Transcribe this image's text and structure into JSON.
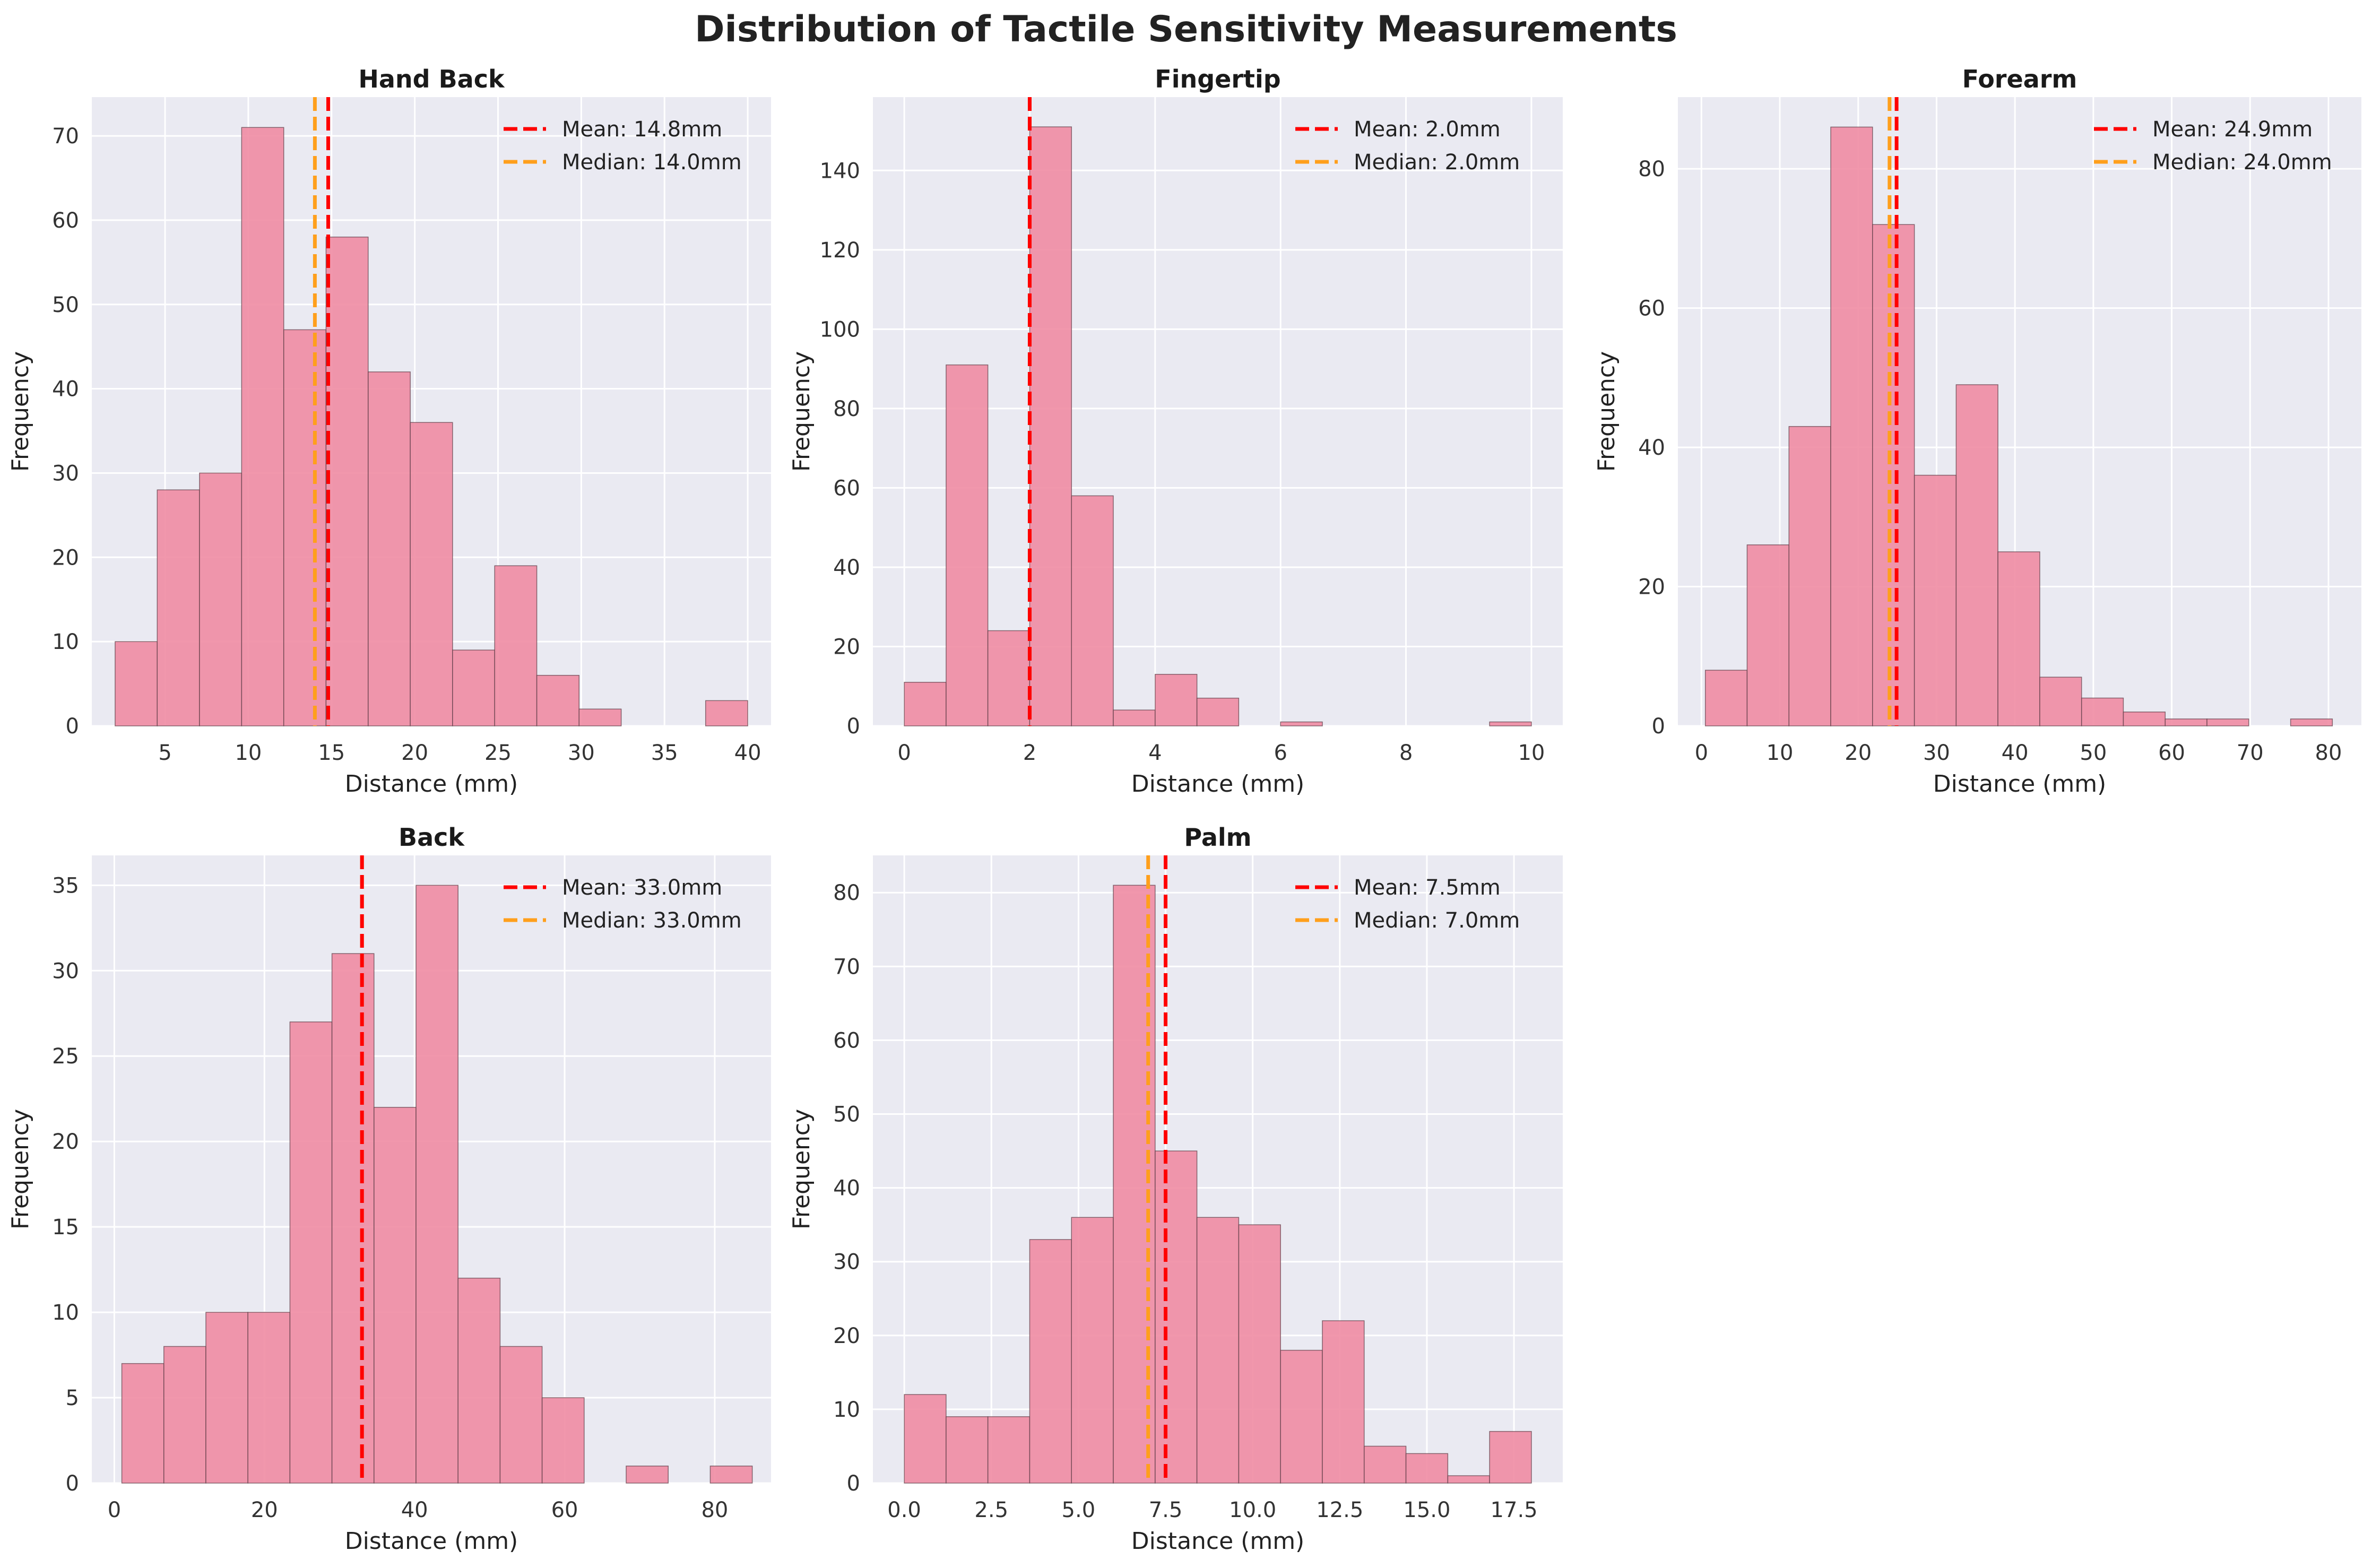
{
  "suptitle": "Distribution of Tactile Sensitivity Measurements",
  "colors": {
    "bar": "#f08ca3",
    "bar_edge": "#5a3a44",
    "panel_bg": "#eaeaf2",
    "grid": "#ffffff",
    "mean_line": "#ff0000",
    "median_line": "#ff9f1c"
  },
  "chart_data": [
    {
      "type": "bar",
      "title": "Hand Back",
      "xlabel": "Distance (mm)",
      "ylabel": "Frequency",
      "xlim": [
        0.6,
        41.4
      ],
      "ylim": [
        0,
        74.6
      ],
      "xticks": [
        5,
        10,
        15,
        20,
        25,
        30,
        35,
        40
      ],
      "yticks": [
        0,
        10,
        20,
        30,
        40,
        50,
        60,
        70
      ],
      "bin_edges": [
        2.0,
        4.53,
        7.07,
        9.6,
        12.13,
        14.67,
        17.2,
        19.73,
        22.27,
        24.8,
        27.33,
        29.87,
        32.4,
        34.93,
        37.47,
        40.0
      ],
      "counts": [
        10,
        28,
        30,
        71,
        47,
        58,
        42,
        36,
        9,
        19,
        6,
        2,
        0,
        0,
        3
      ],
      "mean": 14.8,
      "median": 14.0,
      "legend": [
        "Mean: 14.8mm",
        "Median: 14.0mm"
      ],
      "legend_position": "top-right",
      "grid": true
    },
    {
      "type": "bar",
      "title": "Fingertip",
      "xlabel": "Distance (mm)",
      "ylabel": "Frequency",
      "xlim": [
        -0.5,
        10.5
      ],
      "ylim": [
        0,
        158.5
      ],
      "xticks": [
        0,
        2,
        4,
        6,
        8,
        10
      ],
      "yticks": [
        0,
        20,
        40,
        60,
        80,
        100,
        120,
        140
      ],
      "bin_edges": [
        0.0,
        0.667,
        1.333,
        2.0,
        2.667,
        3.333,
        4.0,
        4.667,
        5.333,
        6.0,
        6.667,
        7.333,
        8.0,
        8.667,
        9.333,
        10.0
      ],
      "counts": [
        11,
        91,
        24,
        151,
        58,
        4,
        13,
        7,
        0,
        1,
        0,
        0,
        0,
        0,
        1
      ],
      "mean": 2.0,
      "median": 2.0,
      "legend": [
        "Mean: 2.0mm",
        "Median: 2.0mm"
      ],
      "legend_position": "top-right",
      "grid": true
    },
    {
      "type": "bar",
      "title": "Forearm",
      "xlabel": "Distance (mm)",
      "ylabel": "Frequency",
      "xlim": [
        -3.0,
        84.2
      ],
      "ylim": [
        0,
        90.3
      ],
      "xticks": [
        0,
        10,
        20,
        30,
        40,
        50,
        60,
        70,
        80
      ],
      "yticks": [
        0,
        20,
        40,
        60,
        80
      ],
      "bin_edges": [
        0.5,
        5.83,
        11.17,
        16.5,
        21.83,
        27.17,
        32.5,
        37.83,
        43.17,
        48.5,
        53.83,
        59.17,
        64.5,
        69.83,
        75.17,
        80.5
      ],
      "counts": [
        8,
        26,
        43,
        86,
        72,
        36,
        49,
        25,
        7,
        4,
        2,
        1,
        1,
        0,
        1
      ],
      "mean": 24.9,
      "median": 24.0,
      "legend": [
        "Mean: 24.9mm",
        "Median: 24.0mm"
      ],
      "legend_position": "top-right",
      "grid": true
    },
    {
      "type": "bar",
      "title": "Back",
      "xlabel": "Distance (mm)",
      "ylabel": "Frequency",
      "xlim": [
        -3.0,
        87.5
      ],
      "ylim": [
        0,
        36.75
      ],
      "xticks": [
        0,
        20,
        40,
        60,
        80
      ],
      "yticks": [
        0,
        5,
        10,
        15,
        20,
        25,
        30,
        35
      ],
      "bin_edges": [
        1.0,
        6.6,
        12.2,
        17.8,
        23.4,
        29.0,
        34.6,
        40.2,
        45.8,
        51.4,
        57.0,
        62.6,
        68.2,
        73.8,
        79.4,
        85.0
      ],
      "counts": [
        7,
        8,
        10,
        10,
        27,
        31,
        22,
        35,
        12,
        8,
        5,
        0,
        1,
        0,
        1
      ],
      "mean": 33.0,
      "median": 33.0,
      "legend": [
        "Mean: 33.0mm",
        "Median: 33.0mm"
      ],
      "legend_position": "top-right",
      "grid": true
    },
    {
      "type": "bar",
      "title": "Palm",
      "xlabel": "Distance (mm)",
      "ylabel": "Frequency",
      "xlim": [
        -0.9,
        18.9
      ],
      "ylim": [
        0,
        85.05
      ],
      "xticks": [
        0.0,
        2.5,
        5.0,
        7.5,
        10.0,
        12.5,
        15.0,
        17.5
      ],
      "xtick_labels": [
        "0.0",
        "2.5",
        "5.0",
        "7.5",
        "10.0",
        "12.5",
        "15.0",
        "17.5"
      ],
      "yticks": [
        0,
        10,
        20,
        30,
        40,
        50,
        60,
        70,
        80
      ],
      "bin_edges": [
        0.0,
        1.2,
        2.4,
        3.6,
        4.8,
        6.0,
        7.2,
        8.4,
        9.6,
        10.8,
        12.0,
        13.2,
        14.4,
        15.6,
        16.8,
        18.0
      ],
      "counts": [
        12,
        9,
        9,
        33,
        36,
        81,
        45,
        36,
        35,
        18,
        22,
        5,
        4,
        1,
        7
      ],
      "mean": 7.5,
      "median": 7.0,
      "legend": [
        "Mean: 7.5mm",
        "Median: 7.0mm"
      ],
      "legend_position": "top-right",
      "grid": true
    }
  ]
}
